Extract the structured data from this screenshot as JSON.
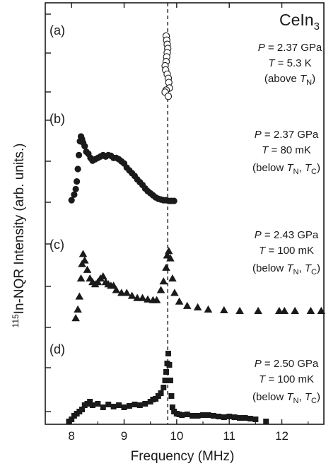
{
  "chart_data": {
    "type": "scatter",
    "title": "",
    "compound": {
      "base": "CeIn",
      "sub": "3"
    },
    "xlabel": "Frequency (MHz)",
    "ylabel": {
      "sup": "115",
      "text": "In-NQR Intensity (arb. units.)"
    },
    "xlim": [
      7.5,
      12.8
    ],
    "xticks": [
      8,
      9,
      10,
      11,
      12
    ],
    "x_tick_labels": [
      "8",
      "9",
      "10",
      "11",
      "12"
    ],
    "reference_line_x": 9.83,
    "grid": false,
    "panels": [
      {
        "label": "(a)",
        "marker": "open-circle",
        "conditions": [
          {
            "var": "P",
            "eq": " = ",
            "value": "2.37 GPa"
          },
          {
            "var": "T",
            "eq": " = ",
            "value": "5.3 K"
          },
          {
            "open": "(above ",
            "var": "T",
            "sub": "N",
            "close": ")"
          }
        ],
        "x": [
          9.8,
          9.81,
          9.82,
          9.83,
          9.82,
          9.81,
          9.8,
          9.78,
          9.79,
          9.82,
          9.84,
          9.85,
          9.86,
          9.8,
          9.78,
          9.84
        ],
        "y": [
          0.97,
          0.91,
          0.85,
          0.79,
          0.73,
          0.67,
          0.6,
          0.54,
          0.48,
          0.42,
          0.36,
          0.3,
          0.22,
          0.19,
          0.16,
          0.1
        ]
      },
      {
        "label": "(b)",
        "marker": "filled-circle",
        "conditions": [
          {
            "var": "P",
            "eq": " = ",
            "value": "2.37 GPa"
          },
          {
            "var": "T",
            "eq": " = ",
            "value": "80 mK"
          },
          {
            "open": "(below  ",
            "var": "T",
            "sub": "N",
            "mid": ", ",
            "var2": "T",
            "sub2": "C",
            "close": ")"
          }
        ],
        "x": [
          8.0,
          8.05,
          8.08,
          8.1,
          8.12,
          8.14,
          8.16,
          8.18,
          8.2,
          8.22,
          8.25,
          8.28,
          8.32,
          8.36,
          8.4,
          8.45,
          8.5,
          8.55,
          8.6,
          8.65,
          8.7,
          8.75,
          8.8,
          8.85,
          8.9,
          8.95,
          9.0,
          9.05,
          9.1,
          9.15,
          9.2,
          9.25,
          9.3,
          9.35,
          9.4,
          9.45,
          9.5,
          9.55,
          9.6,
          9.65,
          9.7,
          9.75,
          9.8,
          9.85,
          9.9,
          9.95
        ],
        "y": [
          0.05,
          0.13,
          0.21,
          0.32,
          0.5,
          0.7,
          0.9,
          0.97,
          0.93,
          0.88,
          0.83,
          0.75,
          0.72,
          0.66,
          0.62,
          0.64,
          0.66,
          0.68,
          0.7,
          0.68,
          0.7,
          0.69,
          0.66,
          0.66,
          0.64,
          0.61,
          0.58,
          0.52,
          0.48,
          0.44,
          0.4,
          0.35,
          0.31,
          0.27,
          0.22,
          0.18,
          0.15,
          0.12,
          0.09,
          0.07,
          0.06,
          0.05,
          0.05,
          0.04,
          0.04,
          0.04
        ]
      },
      {
        "label": "(c)",
        "marker": "filled-triangle",
        "conditions": [
          {
            "var": "P",
            "eq": " = ",
            "value": "2.43 GPa"
          },
          {
            "var": "T",
            "eq": " = ",
            "value": "100 mK"
          },
          {
            "open": "(below  ",
            "var": "T",
            "sub": "N",
            "mid": ", ",
            "var2": "T",
            "sub2": "C",
            "close": ")"
          }
        ],
        "x": [
          8.08,
          8.12,
          8.15,
          8.18,
          8.2,
          8.22,
          8.25,
          8.3,
          8.35,
          8.4,
          8.45,
          8.5,
          8.55,
          8.6,
          8.65,
          8.7,
          8.75,
          8.8,
          8.85,
          8.95,
          9.05,
          9.15,
          9.25,
          9.35,
          9.45,
          9.55,
          9.62,
          9.7,
          9.75,
          9.8,
          9.82,
          9.85,
          9.88,
          9.92,
          9.96,
          10.05,
          10.2,
          10.4,
          10.6,
          10.9,
          11.2,
          11.55,
          11.95,
          12.05,
          12.25,
          12.55,
          12.75
        ],
        "y": [
          0.05,
          0.17,
          0.35,
          0.6,
          0.8,
          0.94,
          0.85,
          0.72,
          0.6,
          0.55,
          0.52,
          0.55,
          0.6,
          0.63,
          0.55,
          0.52,
          0.5,
          0.5,
          0.44,
          0.4,
          0.4,
          0.36,
          0.33,
          0.33,
          0.31,
          0.3,
          0.3,
          0.44,
          0.56,
          0.75,
          0.92,
          0.98,
          0.88,
          0.6,
          0.4,
          0.28,
          0.22,
          0.2,
          0.17,
          0.16,
          0.15,
          0.15,
          0.15,
          0.15,
          0.15,
          0.15,
          0.15
        ]
      },
      {
        "label": "(d)",
        "marker": "filled-square",
        "conditions": [
          {
            "var": "P",
            "eq": " = ",
            "value": "2.50 GPa"
          },
          {
            "var": "T",
            "eq": " = ",
            "value": "100 mK"
          },
          {
            "open": "(below  ",
            "var": "T",
            "sub": "N",
            "mid": ", ",
            "var2": "T",
            "sub2": "C",
            "close": ")"
          }
        ],
        "x": [
          7.95,
          8.0,
          8.05,
          8.1,
          8.15,
          8.2,
          8.25,
          8.3,
          8.35,
          8.4,
          8.5,
          8.6,
          8.7,
          8.8,
          8.9,
          9.0,
          9.1,
          9.2,
          9.3,
          9.4,
          9.5,
          9.55,
          9.6,
          9.65,
          9.7,
          9.75,
          9.78,
          9.8,
          9.82,
          9.84,
          9.86,
          9.88,
          9.9,
          9.92,
          9.95,
          10.0,
          10.05,
          10.1,
          10.2,
          10.3,
          10.4,
          10.5,
          10.6,
          10.7,
          10.8,
          10.9,
          11.0,
          11.1,
          11.2,
          11.3,
          11.4,
          11.5,
          11.7
        ],
        "y": [
          0.02,
          0.05,
          0.1,
          0.13,
          0.16,
          0.19,
          0.25,
          0.27,
          0.3,
          0.25,
          0.27,
          0.22,
          0.26,
          0.23,
          0.25,
          0.22,
          0.24,
          0.26,
          0.25,
          0.27,
          0.3,
          0.33,
          0.34,
          0.38,
          0.42,
          0.5,
          0.6,
          0.72,
          0.84,
          0.98,
          0.82,
          0.6,
          0.38,
          0.22,
          0.16,
          0.13,
          0.12,
          0.11,
          0.12,
          0.1,
          0.1,
          0.11,
          0.11,
          0.1,
          0.09,
          0.08,
          0.09,
          0.08,
          0.07,
          0.07,
          0.06,
          0.05,
          0.02
        ]
      }
    ]
  }
}
